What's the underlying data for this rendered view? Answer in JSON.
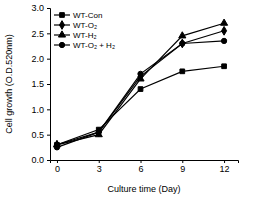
{
  "chart_data": {
    "type": "line",
    "x_label": "Culture time (Day)",
    "y_label": "Cell growth (O.D.520nm)",
    "x": [
      0,
      3,
      6,
      9,
      12
    ],
    "xlim": [
      -0.5,
      13
    ],
    "xticks": [
      0,
      3,
      6,
      9,
      12
    ],
    "ylim": [
      0,
      3
    ],
    "yticks": [
      {
        "value": 0,
        "label": "0.0"
      },
      0.5,
      {
        "value": 1,
        "label": "1.0"
      },
      1.5,
      {
        "value": 2,
        "label": "2.0"
      },
      2.5,
      {
        "value": 3,
        "label": "3.0"
      }
    ],
    "legend": "upper left",
    "series": [
      {
        "name": "WT-Con",
        "color": "#000000",
        "marker": "square",
        "values": [
          0.3,
          0.6,
          1.4,
          1.75,
          1.85
        ]
      },
      {
        "name": "WT-O₂",
        "color": "#000000",
        "marker": "diamond",
        "values": [
          0.3,
          0.55,
          1.65,
          2.3,
          2.55
        ]
      },
      {
        "name": "WT-H₂",
        "color": "#000000",
        "marker": "triangle",
        "values": [
          0.3,
          0.5,
          1.6,
          2.45,
          2.7
        ]
      },
      {
        "name": "WT-O₂ + H₂",
        "color": "#000000",
        "marker": "circle",
        "values": [
          0.25,
          0.55,
          1.7,
          2.3,
          2.35
        ]
      }
    ]
  }
}
